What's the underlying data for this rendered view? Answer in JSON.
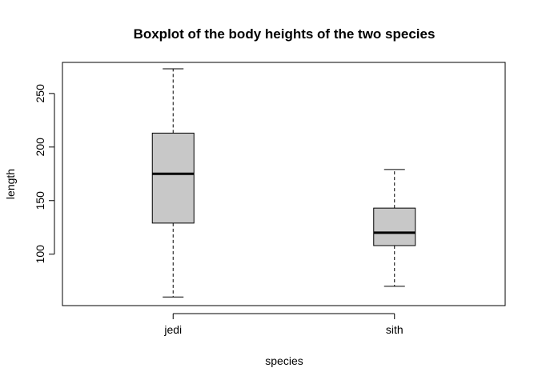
{
  "chart_data": {
    "type": "boxplot",
    "title": "Boxplot of the body heights of the two species",
    "xlabel": "species",
    "ylabel": "length",
    "categories": [
      "jedi",
      "sith"
    ],
    "yticks": [
      100,
      150,
      200,
      250
    ],
    "ylim": [
      52,
      279
    ],
    "boxes": [
      {
        "category": "jedi",
        "min": 60,
        "q1": 129,
        "median": 175,
        "q3": 213,
        "max": 273
      },
      {
        "category": "sith",
        "min": 70,
        "q1": 108,
        "median": 120,
        "q3": 143,
        "max": 179
      }
    ],
    "colors": {
      "box_fill": "#c8c8c8",
      "stroke": "#000000"
    }
  }
}
